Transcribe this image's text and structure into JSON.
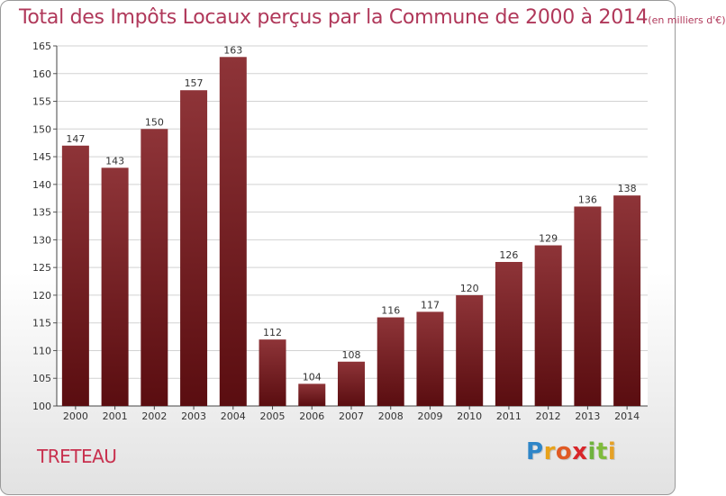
{
  "title_main": "Total des Impôts Locaux perçus par la Commune de 2000 à 2014",
  "title_unit": "(en milliers d'€)",
  "commune": "TRETEAU",
  "logo": {
    "letters": [
      "P",
      "r",
      "o",
      "x",
      "i",
      "t",
      "i"
    ],
    "colors": [
      "#2f86c8",
      "#e8a21a",
      "#e05a24",
      "#d8262a",
      "#6fb33d",
      "#7fbb3c",
      "#e5a127"
    ]
  },
  "colors": {
    "bar_top": "#8e3438",
    "bar_bottom": "#5a0d10",
    "title": "#b0385a",
    "grid": "#d2d2d2"
  },
  "chart_data": {
    "type": "bar",
    "title": "Total des Impôts Locaux perçus par la Commune de 2000 à 2014 (en milliers d'€)",
    "categories": [
      "2000",
      "2001",
      "2002",
      "2003",
      "2004",
      "2005",
      "2006",
      "2007",
      "2008",
      "2009",
      "2010",
      "2011",
      "2012",
      "2013",
      "2014"
    ],
    "values": [
      147,
      143,
      150,
      157,
      163,
      112,
      104,
      108,
      116,
      117,
      120,
      126,
      129,
      136,
      138
    ],
    "ylim": [
      100,
      165
    ],
    "yticks": [
      100,
      105,
      110,
      115,
      120,
      125,
      130,
      135,
      140,
      145,
      150,
      155,
      160,
      165
    ],
    "xlabel": "",
    "ylabel": "",
    "grid": true
  }
}
